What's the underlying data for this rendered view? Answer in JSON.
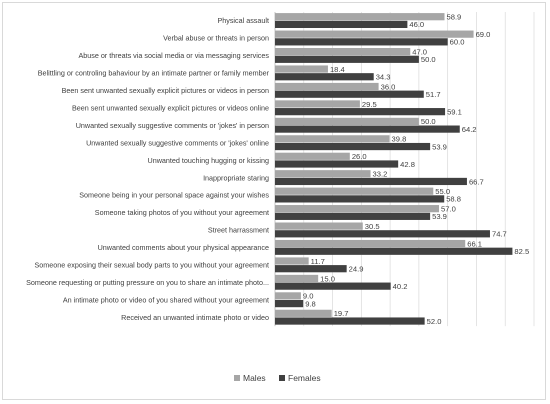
{
  "chart_data": {
    "type": "bar",
    "orientation": "horizontal",
    "categories": [
      "Physical assault",
      "Verbal abuse or threats in person",
      "Abuse or threats via social media or via messaging services",
      "Belittling or controling bahaviour by an intimate partner or family member",
      "Been sent unwanted sexually explicit pictures or videos in person",
      "Been sent unwanted sexually explicit pictures or videos online",
      "Unwanted sexually suggestive comments or 'jokes' in person",
      "Unwanted sexually suggestive comments or 'jokes' online",
      "Unwanted touching hugging or kissing",
      "Inappropriate staring",
      "Someone being in your personal space against your wishes",
      "Someone taking photos of you without your agreement",
      "Street harrassment",
      "Unwanted comments about your physical appearance",
      "Someone exposing their sexual body parts to you without your agreement",
      "Someone requesting or putting pressure on you to share an intimate photo...",
      "An intimate photo or video of you shared without your agreement",
      "Received an unwanted intimate photo or video"
    ],
    "series": [
      {
        "name": "Males",
        "color": "#a6a6a6",
        "values": [
          58.9,
          69.0,
          47.0,
          18.4,
          36.0,
          29.5,
          50.0,
          39.8,
          26.0,
          33.2,
          55.0,
          57.0,
          30.5,
          66.1,
          11.7,
          15.0,
          9.0,
          19.7
        ],
        "labels": [
          "58.9",
          "69.0",
          "47.0",
          "18.4",
          "36.0",
          "29.5",
          "50.0",
          "39.8",
          "26.0",
          "33.2",
          "55.0",
          "57.0",
          "30.5",
          "66.1",
          "11.7",
          "15.0",
          "9.0",
          "19.7"
        ]
      },
      {
        "name": "Females",
        "color": "#404040",
        "values": [
          46.0,
          60.0,
          50.0,
          34.3,
          51.7,
          59.1,
          64.2,
          53.9,
          42.8,
          66.7,
          58.8,
          53.9,
          74.7,
          82.5,
          24.9,
          40.2,
          9.8,
          52.0
        ],
        "labels": [
          "46.0",
          "60.0",
          "50.0",
          "34.3",
          "51.7",
          "59.1",
          "64.2",
          "53.9",
          "42.8",
          "66.7",
          "58.8",
          "53.9",
          "74.7",
          "82.5",
          "24.9",
          "40.2",
          "9.8",
          "52.0"
        ]
      }
    ],
    "xlim": [
      0,
      90
    ],
    "grid": true,
    "legend_position": "bottom"
  }
}
